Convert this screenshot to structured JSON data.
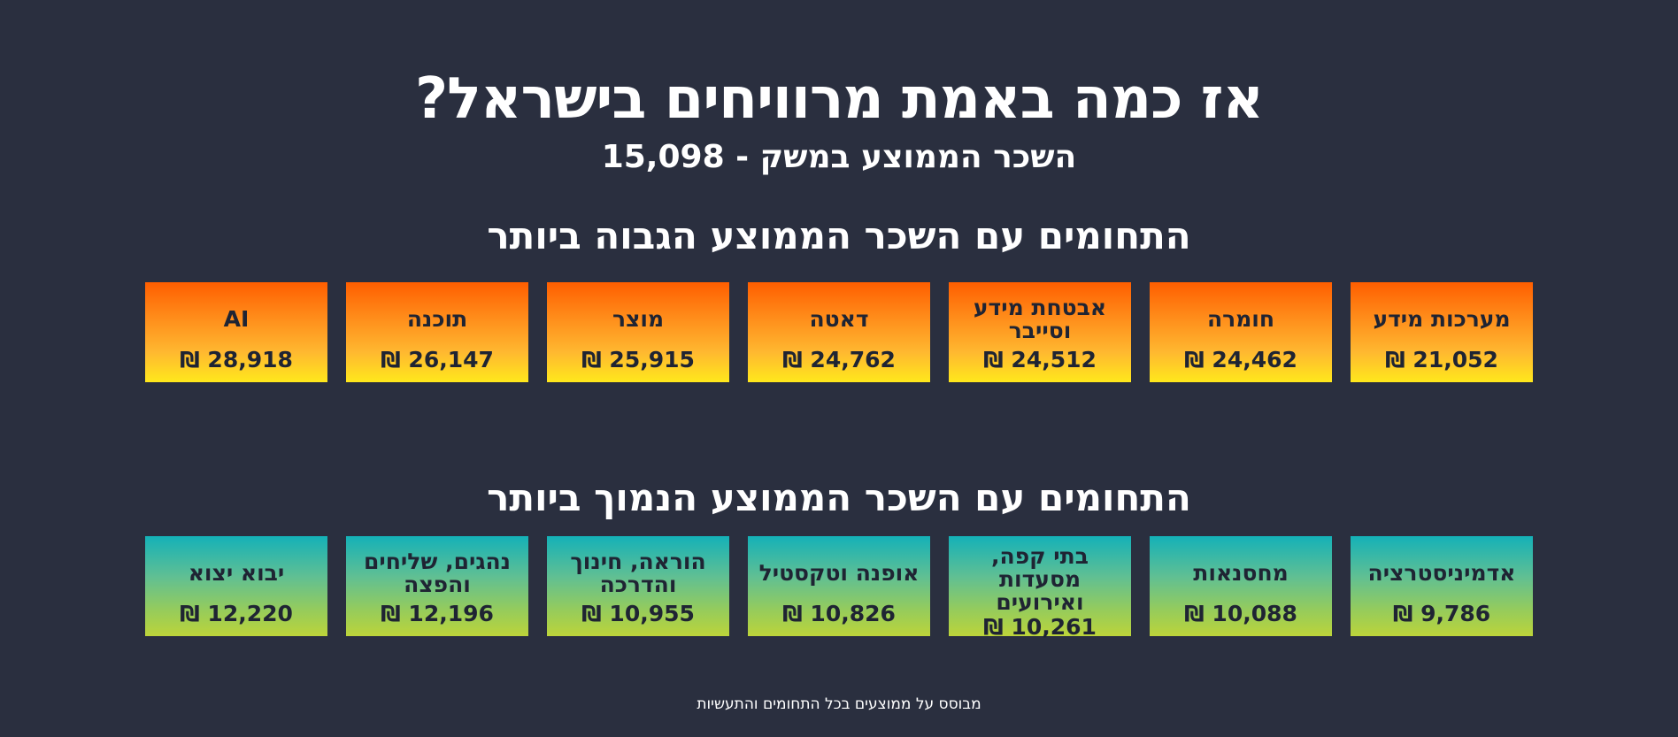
{
  "title": "אז כמה באמת מרוויחים בישראל?",
  "subtitle": "השכר הממוצע במשק - 15,098",
  "high_section": {
    "title": "התחומים עם השכר הממוצע הגבוה ביותר",
    "cards": [
      {
        "name": "מערכות מידע",
        "value": "₪ 21,052"
      },
      {
        "name": "חומרה",
        "value": "₪ 24,462"
      },
      {
        "name": "אבטחת מידע וסייבר",
        "value": "₪ 24,512"
      },
      {
        "name": "דאטה",
        "value": "₪ 24,762"
      },
      {
        "name": "מוצר",
        "value": "₪ 25,915"
      },
      {
        "name": "תוכנה",
        "value": "₪ 26,147"
      },
      {
        "name": "AI",
        "value": "₪ 28,918"
      }
    ]
  },
  "low_section": {
    "title": "התחומים עם השכר הממוצע הנמוך ביותר",
    "cards": [
      {
        "name": "אדמיניסטרציה",
        "value": "₪ 9,786"
      },
      {
        "name": "מחסנאות",
        "value": "₪ 10,088"
      },
      {
        "name": "בתי קפה, מסעדות ואירועים",
        "value": "₪ 10,261"
      },
      {
        "name": "אופנה וטקסטיל",
        "value": "₪ 10,826"
      },
      {
        "name": "הוראה, חינוך והדרכה",
        "value": "₪ 10,955"
      },
      {
        "name": "נהגים, שליחים והפצה",
        "value": "₪ 12,196"
      },
      {
        "name": "יבוא יצוא",
        "value": "₪ 12,220"
      }
    ]
  },
  "footnote": "מבוסס על ממוצעים בכל התחומים והתעשיות",
  "colors": {
    "background": "#2a2f3f",
    "high_gradient_top": "#ff5e00",
    "high_gradient_bottom": "#ffe81c",
    "low_gradient_top": "#14b1b8",
    "low_gradient_bottom": "#bcd43a",
    "card_text": "#1f2433"
  }
}
